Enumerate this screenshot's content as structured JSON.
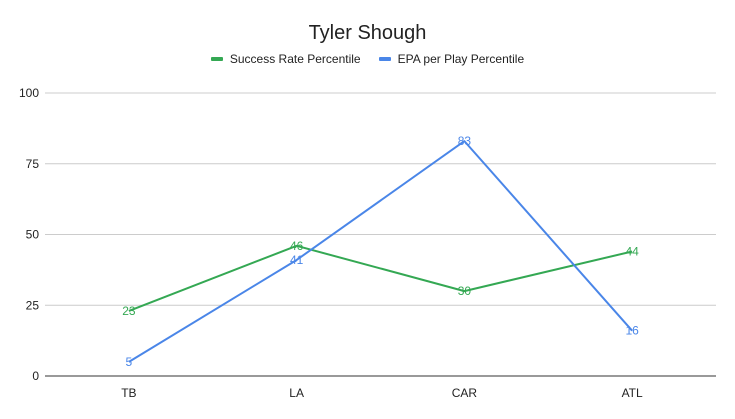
{
  "chart_data": {
    "type": "line",
    "title": "Tyler Shough",
    "categories": [
      "TB",
      "LA",
      "CAR",
      "ATL"
    ],
    "ylim": [
      0,
      100
    ],
    "yticks": [
      0,
      25,
      50,
      75,
      100
    ],
    "grid": true,
    "legend_position": "top",
    "series": [
      {
        "name": "Success Rate Percentile",
        "color": "#34a853",
        "values": [
          23,
          46,
          30,
          44
        ],
        "labels": [
          "23",
          "46",
          "30",
          "44"
        ]
      },
      {
        "name": "EPA per Play Percentile",
        "color": "#4a86e8",
        "values": [
          5,
          41,
          83,
          16
        ],
        "labels": [
          "5",
          "41",
          "83",
          "16"
        ]
      }
    ]
  }
}
